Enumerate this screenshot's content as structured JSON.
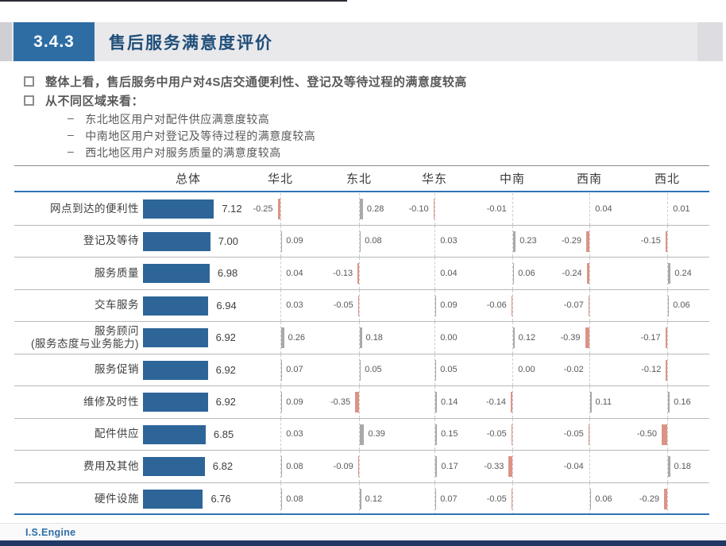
{
  "slide": {
    "section_number": "3.4.3",
    "title": "售后服务满意度评价",
    "footer": "I.S.Engine"
  },
  "bullets": [
    {
      "level": 1,
      "text": "整体上看，售后服务中用户对4S店交通便利性、登记及等待过程的满意度较高"
    },
    {
      "level": 1,
      "text": "从不同区域来看："
    },
    {
      "level": 2,
      "text": "东北地区用户对配件供应满意度较高"
    },
    {
      "level": 2,
      "text": "中南地区用户对登记及等待过程的满意度较高"
    },
    {
      "level": 2,
      "text": "西北地区用户对服务质量的满意度较高"
    }
  ],
  "chart_data": {
    "type": "bar",
    "title": "售后服务满意度评价",
    "columns": [
      "总体",
      "华北",
      "东北",
      "华东",
      "中南",
      "西南",
      "西北"
    ],
    "categories": [
      "网点到达的便利性",
      "登记及等待",
      "服务质量",
      "交车服务",
      "服务顾问\n(服务态度与业务能力)",
      "服务促销",
      "维修及时性",
      "配件供应",
      "费用及其他",
      "硬件设施"
    ],
    "series": [
      {
        "name": "总体",
        "values": [
          7.12,
          7.0,
          6.98,
          6.94,
          6.92,
          6.92,
          6.92,
          6.85,
          6.82,
          6.76
        ]
      },
      {
        "name": "华北",
        "values": [
          -0.25,
          0.09,
          0.04,
          0.03,
          0.26,
          0.07,
          0.09,
          0.03,
          0.08,
          0.08
        ]
      },
      {
        "name": "东北",
        "values": [
          0.28,
          0.08,
          -0.13,
          -0.05,
          0.18,
          0.05,
          -0.35,
          0.39,
          -0.09,
          0.12
        ]
      },
      {
        "name": "华东",
        "values": [
          -0.1,
          0.03,
          0.04,
          0.09,
          0.0,
          0.05,
          0.14,
          0.15,
          0.17,
          0.07
        ]
      },
      {
        "name": "中南",
        "values": [
          -0.01,
          0.23,
          0.06,
          -0.06,
          0.12,
          0.0,
          -0.14,
          -0.05,
          -0.33,
          -0.05
        ]
      },
      {
        "name": "西南",
        "values": [
          0.04,
          -0.29,
          -0.24,
          -0.07,
          -0.39,
          -0.02,
          0.11,
          -0.05,
          -0.04,
          0.06
        ]
      },
      {
        "name": "西北",
        "values": [
          0.01,
          -0.15,
          0.24,
          0.06,
          -0.17,
          -0.12,
          0.16,
          -0.5,
          0.18,
          -0.29
        ]
      }
    ],
    "value_format": "2-decimals",
    "legend": "none",
    "grid": "dashed-vertical-axis-per-region",
    "colors": {
      "total_bar": "#2d6598",
      "positive_bar": "#a9a9a9",
      "negative_bar": "#dc9385",
      "accent_blue": "#2e6da4",
      "title_navy": "#1f4e79",
      "rule_blue": "#2e74b5",
      "bottom_bar_navy": "#1f3864"
    }
  }
}
